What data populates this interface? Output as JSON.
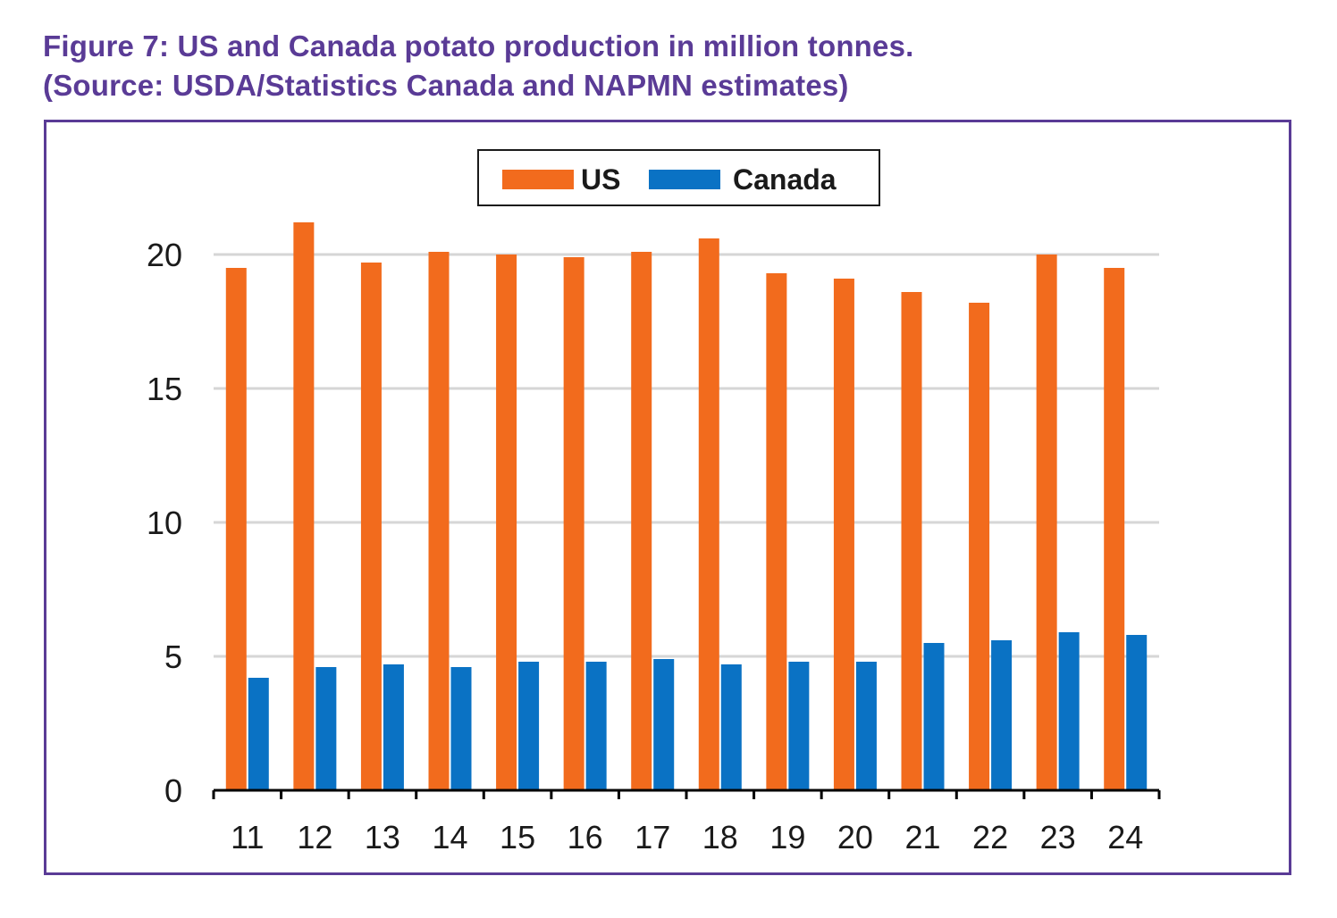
{
  "figure": {
    "title_line1": "Figure 7: US and Canada potato production in million tonnes.",
    "title_line2": "(Source: USDA/Statistics Canada and NAPMN estimates)"
  },
  "colors": {
    "us": "#f26b1d",
    "canada": "#0a72c4",
    "title": "#5a3b96",
    "grid": "#d6d6d6",
    "axis": "#000000"
  },
  "chart_data": {
    "type": "bar",
    "title": "Figure 7: US and Canada potato production in million tonnes.",
    "xlabel": "",
    "ylabel": "",
    "ylim": [
      0,
      20
    ],
    "yticks": [
      0,
      5,
      10,
      15,
      20
    ],
    "categories": [
      "11",
      "12",
      "13",
      "14",
      "15",
      "16",
      "17",
      "18",
      "19",
      "20",
      "21",
      "22",
      "23",
      "24"
    ],
    "series": [
      {
        "name": "US",
        "values": [
          19.5,
          21.2,
          19.7,
          20.1,
          20.0,
          19.9,
          20.1,
          20.6,
          19.3,
          19.1,
          18.6,
          18.2,
          20.0,
          19.5
        ]
      },
      {
        "name": "Canada",
        "values": [
          4.2,
          4.6,
          4.7,
          4.6,
          4.8,
          4.8,
          4.9,
          4.7,
          4.8,
          4.8,
          5.5,
          5.6,
          5.9,
          5.8
        ]
      }
    ],
    "legend": {
      "position": "top-center",
      "labels": [
        "US",
        "Canada"
      ]
    }
  }
}
